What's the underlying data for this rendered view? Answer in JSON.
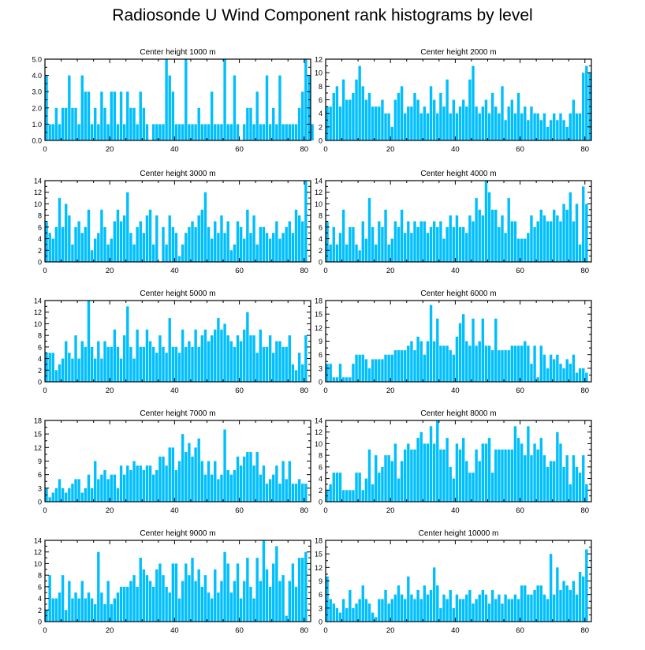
{
  "title": "Radiosonde U Wind Component rank histograms by level",
  "colors": {
    "bar": "#00BFFF",
    "axis": "#000000"
  },
  "chart_data": [
    {
      "type": "bar",
      "title": "Center height 1000 m",
      "xlabel": "",
      "ylabel": "",
      "xlim": [
        0,
        82
      ],
      "ylim": [
        0,
        5
      ],
      "xticks": [
        0,
        20,
        40,
        60,
        80
      ],
      "yticks": [
        0,
        1,
        2,
        3,
        4,
        5
      ],
      "ytick_labels": [
        "0.0",
        "1.0",
        "2.0",
        "3.0",
        "4.0",
        "5.0"
      ],
      "categories_start": 0,
      "values": [
        4,
        1,
        1,
        2,
        1,
        2,
        2,
        4,
        2,
        2,
        1,
        4,
        3,
        3,
        1,
        2,
        1,
        3,
        2,
        1,
        3,
        3,
        1,
        3,
        1,
        3,
        2,
        2,
        1,
        3,
        2,
        1,
        0,
        1,
        1,
        1,
        1,
        5,
        4,
        3,
        1,
        1,
        1,
        5,
        1,
        1,
        1,
        2,
        1,
        1,
        1,
        3,
        1,
        1,
        1,
        5,
        1,
        1,
        4,
        1,
        0,
        1,
        2,
        2,
        1,
        3,
        1,
        1,
        4,
        1,
        2,
        1,
        4,
        1,
        1,
        1,
        1,
        1,
        2,
        3,
        5,
        4,
        1
      ]
    },
    {
      "type": "bar",
      "title": "Center height 2000 m",
      "xlabel": "",
      "ylabel": "",
      "xlim": [
        0,
        82
      ],
      "ylim": [
        0,
        12
      ],
      "xticks": [
        0,
        20,
        40,
        60,
        80
      ],
      "yticks": [
        0,
        2,
        4,
        6,
        8,
        10,
        12
      ],
      "ytick_labels": [
        "0",
        "2",
        "4",
        "6",
        "8",
        "10",
        "12"
      ],
      "categories_start": 0,
      "values": [
        5,
        5,
        7,
        8,
        5,
        9,
        6,
        6,
        7,
        9,
        11,
        8,
        6,
        7,
        5,
        5,
        5,
        6,
        4,
        4,
        2,
        6,
        7,
        8,
        4,
        5,
        5,
        7,
        6,
        4,
        5,
        4,
        8,
        6,
        4,
        7,
        5,
        9,
        4,
        6,
        4,
        5,
        6,
        5,
        9,
        11,
        5,
        4,
        5,
        6,
        4,
        7,
        5,
        4,
        8,
        3,
        5,
        6,
        4,
        7,
        4,
        5,
        3,
        5,
        4,
        4,
        3,
        4,
        2,
        3,
        4,
        3,
        4,
        3,
        2,
        4,
        6,
        4,
        4,
        10,
        11,
        10
      ]
    },
    {
      "type": "bar",
      "title": "Center height 3000 m",
      "xlabel": "",
      "ylabel": "",
      "xlim": [
        0,
        82
      ],
      "ylim": [
        0,
        14
      ],
      "xticks": [
        0,
        20,
        40,
        60,
        80
      ],
      "yticks": [
        0,
        2,
        4,
        6,
        8,
        10,
        12,
        14
      ],
      "ytick_labels": [
        "0",
        "2",
        "4",
        "6",
        "8",
        "10",
        "12",
        "14"
      ],
      "categories_start": 0,
      "values": [
        7,
        5,
        4,
        6,
        11,
        6,
        10,
        8,
        3,
        6,
        7,
        5,
        6,
        9,
        2,
        4,
        5,
        9,
        6,
        3,
        4,
        7,
        9,
        7,
        8,
        12,
        5,
        3,
        6,
        7,
        5,
        8,
        9,
        3,
        8,
        0,
        6,
        3,
        8,
        6,
        5,
        1,
        3,
        5,
        6,
        7,
        6,
        8,
        9,
        12,
        6,
        4,
        7,
        5,
        8,
        5,
        7,
        2,
        3,
        7,
        6,
        4,
        9,
        5,
        8,
        3,
        6,
        6,
        5,
        4,
        5,
        7,
        4,
        5,
        6,
        7,
        5,
        9,
        8,
        7,
        14
      ]
    },
    {
      "type": "bar",
      "title": "Center height 4000 m",
      "xlabel": "",
      "ylabel": "",
      "xlim": [
        0,
        82
      ],
      "ylim": [
        0,
        14
      ],
      "xticks": [
        0,
        20,
        40,
        60,
        80
      ],
      "yticks": [
        0,
        2,
        4,
        6,
        8,
        10,
        12,
        14
      ],
      "ytick_labels": [
        "0",
        "2",
        "4",
        "6",
        "8",
        "10",
        "12",
        "14"
      ],
      "categories_start": 0,
      "values": [
        7,
        3,
        6,
        3,
        5,
        9,
        3,
        6,
        6,
        3,
        2,
        7,
        4,
        11,
        6,
        3,
        7,
        6,
        9,
        3,
        4,
        7,
        6,
        9,
        5,
        7,
        5,
        7,
        6,
        7,
        7,
        5,
        6,
        7,
        6,
        7,
        4,
        6,
        8,
        6,
        8,
        6,
        6,
        5,
        8,
        7,
        11,
        9,
        8,
        14,
        12,
        9,
        9,
        6,
        8,
        5,
        11,
        7,
        7,
        4,
        4,
        4,
        5,
        8,
        6,
        7,
        9,
        8,
        7,
        7,
        9,
        8,
        7,
        10,
        9,
        12,
        7,
        10,
        3,
        13,
        10
      ]
    },
    {
      "type": "bar",
      "title": "Center height 5000 m",
      "xlabel": "",
      "ylabel": "",
      "xlim": [
        0,
        82
      ],
      "ylim": [
        0,
        14
      ],
      "xticks": [
        0,
        20,
        40,
        60,
        80
      ],
      "yticks": [
        0,
        2,
        4,
        6,
        8,
        10,
        12,
        14
      ],
      "ytick_labels": [
        "0",
        "2",
        "4",
        "6",
        "8",
        "10",
        "12",
        "14"
      ],
      "categories_start": 0,
      "values": [
        5,
        5,
        5,
        2,
        3,
        4,
        7,
        5,
        4,
        8,
        4,
        7,
        6,
        14,
        6,
        4,
        7,
        4,
        7,
        6,
        6,
        9,
        6,
        4,
        8,
        13,
        6,
        4,
        9,
        6,
        6,
        9,
        7,
        6,
        5,
        8,
        6,
        5,
        11,
        6,
        6,
        5,
        9,
        6,
        7,
        6,
        9,
        6,
        8,
        9,
        7,
        8,
        9,
        11,
        9,
        10,
        8,
        7,
        6,
        8,
        7,
        9,
        12,
        8,
        8,
        5,
        9,
        6,
        6,
        8,
        5,
        7,
        7,
        6,
        6,
        8,
        3,
        2,
        5,
        3,
        8
      ]
    },
    {
      "type": "bar",
      "title": "Center height 6000 m",
      "xlabel": "",
      "ylabel": "",
      "xlim": [
        0,
        82
      ],
      "ylim": [
        0,
        18
      ],
      "xticks": [
        0,
        20,
        40,
        60,
        80
      ],
      "yticks": [
        0,
        3,
        6,
        9,
        12,
        15,
        18
      ],
      "ytick_labels": [
        "0",
        "3",
        "6",
        "9",
        "12",
        "15",
        "18"
      ],
      "categories_start": 0,
      "values": [
        4,
        4,
        1,
        1,
        4,
        1,
        1,
        1,
        4,
        6,
        6,
        6,
        5,
        3,
        5,
        5,
        5,
        5,
        6,
        6,
        6,
        7,
        7,
        7,
        7,
        8,
        9,
        7,
        10,
        9,
        6,
        9,
        17,
        9,
        14,
        8,
        8,
        8,
        7,
        6,
        10,
        13,
        15,
        9,
        8,
        14,
        8,
        9,
        14,
        8,
        8,
        7,
        14,
        7,
        7,
        7,
        7,
        8,
        8,
        8,
        8,
        9,
        8,
        4,
        8,
        1,
        8,
        6,
        3,
        6,
        5,
        6,
        4,
        3,
        5,
        4,
        6,
        2,
        3,
        3,
        2
      ]
    },
    {
      "type": "bar",
      "title": "Center height 7000 m",
      "xlabel": "",
      "ylabel": "",
      "xlim": [
        0,
        82
      ],
      "ylim": [
        0,
        18
      ],
      "xticks": [
        0,
        20,
        40,
        60,
        80
      ],
      "yticks": [
        0,
        3,
        6,
        9,
        12,
        15,
        18
      ],
      "ytick_labels": [
        "0",
        "3",
        "6",
        "9",
        "12",
        "15",
        "18"
      ],
      "categories_start": 0,
      "values": [
        3,
        1,
        2,
        3,
        5,
        3,
        2,
        3,
        4,
        5,
        5,
        2,
        3,
        6,
        3,
        9,
        5,
        6,
        7,
        5,
        6,
        6,
        3,
        8,
        6,
        8,
        7,
        9,
        8,
        8,
        7,
        8,
        8,
        6,
        7,
        10,
        10,
        8,
        12,
        12,
        7,
        9,
        15,
        11,
        13,
        10,
        12,
        14,
        9,
        6,
        9,
        6,
        9,
        5,
        6,
        16,
        7,
        6,
        7,
        10,
        8,
        10,
        11,
        11,
        8,
        11,
        6,
        8,
        4,
        5,
        6,
        8,
        4,
        9,
        5,
        9,
        4,
        4,
        5,
        4,
        4
      ]
    },
    {
      "type": "bar",
      "title": "Center height 8000 m",
      "xlabel": "",
      "ylabel": "",
      "xlim": [
        0,
        82
      ],
      "ylim": [
        0,
        14
      ],
      "xticks": [
        0,
        20,
        40,
        60,
        80
      ],
      "yticks": [
        0,
        2,
        4,
        6,
        8,
        10,
        12,
        14
      ],
      "ytick_labels": [
        "0",
        "2",
        "4",
        "6",
        "8",
        "10",
        "12",
        "14"
      ],
      "categories_start": 0,
      "values": [
        2,
        3,
        5,
        5,
        5,
        2,
        2,
        2,
        2,
        5,
        5,
        2,
        4,
        9,
        3,
        8,
        5,
        6,
        8,
        8,
        7,
        10,
        4,
        7,
        9,
        10,
        9,
        9,
        11,
        12,
        10,
        10,
        13,
        10,
        14,
        9,
        9,
        11,
        6,
        4,
        10,
        9,
        11,
        7,
        5,
        5,
        9,
        7,
        10,
        10,
        11,
        5,
        9,
        9,
        9,
        9,
        9,
        9,
        13,
        11,
        10,
        8,
        13,
        8,
        10,
        9,
        11,
        8,
        6,
        7,
        7,
        12,
        10,
        6,
        8,
        3,
        8,
        6,
        5,
        8,
        3
      ]
    },
    {
      "type": "bar",
      "title": "Center height 9000 m",
      "xlabel": "",
      "ylabel": "",
      "xlim": [
        0,
        82
      ],
      "ylim": [
        0,
        14
      ],
      "xticks": [
        0,
        20,
        40,
        60,
        80
      ],
      "yticks": [
        0,
        2,
        4,
        6,
        8,
        10,
        12,
        14
      ],
      "ytick_labels": [
        "0",
        "2",
        "4",
        "6",
        "8",
        "10",
        "12",
        "14"
      ],
      "categories_start": 0,
      "values": [
        2,
        8,
        4,
        4,
        5,
        8,
        2,
        7,
        4,
        5,
        4,
        7,
        4,
        5,
        4,
        3,
        12,
        5,
        3,
        7,
        3,
        4,
        5,
        6,
        6,
        6,
        7,
        8,
        6,
        11,
        9,
        8,
        7,
        6,
        9,
        10,
        8,
        6,
        5,
        10,
        10,
        4,
        7,
        10,
        8,
        11,
        7,
        9,
        6,
        8,
        5,
        4,
        9,
        5,
        7,
        12,
        10,
        5,
        7,
        10,
        4,
        7,
        11,
        6,
        4,
        11,
        7,
        14,
        9,
        6,
        10,
        13,
        7,
        8,
        1,
        7,
        10,
        6,
        11,
        11,
        12
      ]
    },
    {
      "type": "bar",
      "title": "Center height 10000 m",
      "xlabel": "",
      "ylabel": "",
      "xlim": [
        0,
        82
      ],
      "ylim": [
        0,
        18
      ],
      "xticks": [
        0,
        20,
        40,
        60,
        80
      ],
      "yticks": [
        0,
        3,
        6,
        9,
        12,
        15,
        18
      ],
      "ytick_labels": [
        "0",
        "3",
        "6",
        "9",
        "12",
        "15",
        "18"
      ],
      "categories_start": 0,
      "values": [
        10,
        5,
        4,
        3,
        2,
        5,
        3,
        7,
        3,
        4,
        5,
        8,
        5,
        4,
        2,
        1,
        5,
        5,
        7,
        4,
        5,
        6,
        8,
        6,
        5,
        10,
        6,
        5,
        7,
        5,
        8,
        6,
        7,
        12,
        8,
        3,
        6,
        5,
        7,
        3,
        6,
        5,
        5,
        6,
        7,
        4,
        5,
        6,
        7,
        6,
        4,
        7,
        5,
        6,
        4,
        6,
        5,
        5,
        6,
        5,
        8,
        8,
        6,
        6,
        7,
        8,
        8,
        6,
        5,
        15,
        6,
        12,
        7,
        9,
        8,
        7,
        9,
        6,
        11,
        10,
        16
      ]
    }
  ]
}
